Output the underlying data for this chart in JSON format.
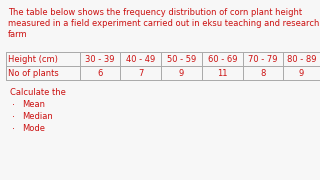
{
  "bg_color": "#f7f7f7",
  "text_color": "#cc1111",
  "intro_lines": [
    "The table below shows the frequency distribution of corn plant height",
    "measured in a field experiment carried out in eksu teaching and research",
    "farm"
  ],
  "col_headers": [
    "Height (cm)",
    "30 - 39",
    "40 - 49",
    "50 - 59",
    "60 - 69",
    "70 - 79",
    "80 - 89"
  ],
  "row_label": "No of plants",
  "row_values": [
    "6",
    "7",
    "9",
    "11",
    "8",
    "9"
  ],
  "calc_header": "Calculate the",
  "calc_items": [
    "Mean",
    "Median",
    "Mode"
  ],
  "intro_fontsize": 6.0,
  "table_fontsize": 6.0,
  "calc_fontsize": 6.0,
  "bullet": "·"
}
